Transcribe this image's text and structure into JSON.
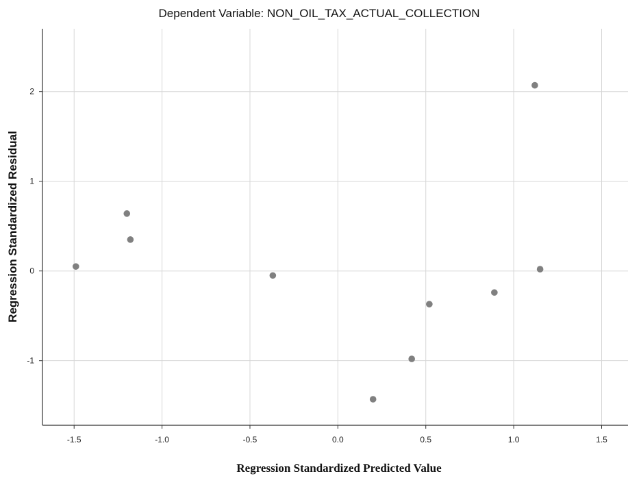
{
  "chart_data": {
    "type": "scatter",
    "title": "Dependent Variable: NON_OIL_TAX_ACTUAL_COLLECTION",
    "xlabel": "Regression Standardized Predicted Value",
    "ylabel": "Regression Standardized Residual",
    "xlim": [
      -1.68,
      1.65
    ],
    "ylim": [
      -1.72,
      2.7
    ],
    "xticks": [
      -1.5,
      -1.0,
      -0.5,
      0.0,
      0.5,
      1.0,
      1.5
    ],
    "xtick_labels": [
      "-1.5",
      "-1.0",
      "-0.5",
      "0.0",
      "0.5",
      "1.0",
      "1.5"
    ],
    "yticks": [
      -1,
      0,
      1,
      2
    ],
    "ytick_labels": [
      "-1",
      "0",
      "1",
      "2"
    ],
    "grid": true,
    "marker_color": "#808080",
    "points": [
      {
        "x": -1.49,
        "y": 0.05
      },
      {
        "x": -1.2,
        "y": 0.64
      },
      {
        "x": -1.18,
        "y": 0.35
      },
      {
        "x": -0.37,
        "y": -0.05
      },
      {
        "x": 0.2,
        "y": -1.43
      },
      {
        "x": 0.42,
        "y": -0.98
      },
      {
        "x": 0.52,
        "y": -0.37
      },
      {
        "x": 0.89,
        "y": -0.24
      },
      {
        "x": 1.12,
        "y": 2.07
      },
      {
        "x": 1.15,
        "y": 0.02
      }
    ]
  }
}
